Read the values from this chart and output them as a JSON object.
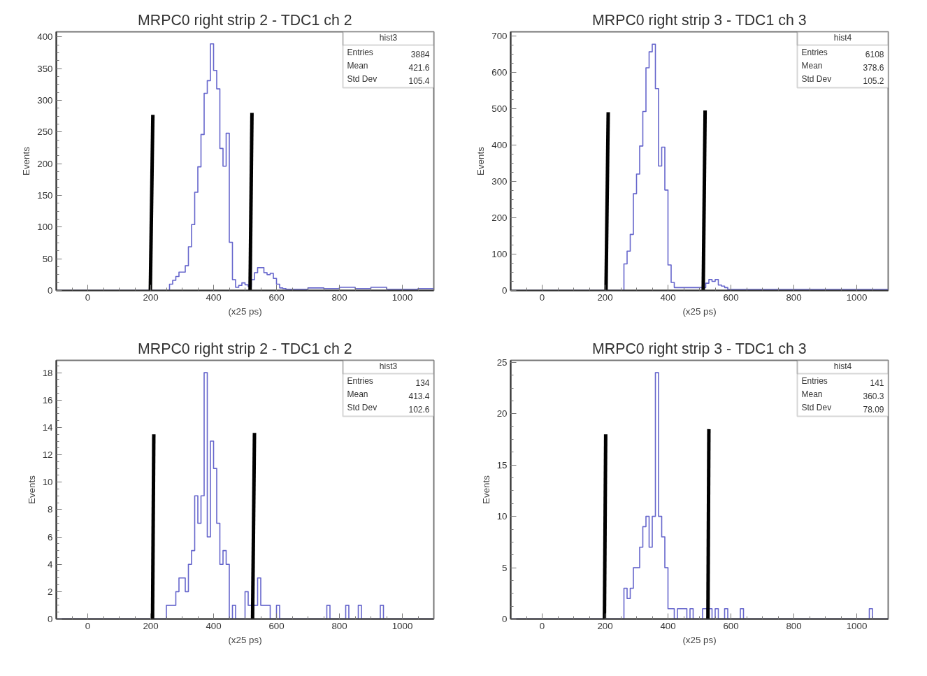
{
  "chart_data": [
    {
      "type": "histogram",
      "title": "MRPC0 right strip 2 - TDC1 ch 2",
      "xlabel": "(x25 ps)",
      "ylabel": "Events",
      "color": "#6666cc",
      "bins": [
        -100,
        260,
        270,
        280,
        290,
        300,
        310,
        320,
        330,
        340,
        350,
        360,
        370,
        380,
        390,
        400,
        410,
        420,
        430,
        440,
        450,
        460,
        470,
        480,
        490,
        500,
        510,
        520,
        530,
        540,
        550,
        560,
        570,
        580,
        590,
        600,
        610,
        620,
        630,
        700,
        750,
        800,
        850,
        900,
        950,
        1050,
        1100
      ],
      "values": [
        0,
        10,
        16,
        22,
        29,
        29,
        39,
        69,
        104,
        155,
        195,
        246,
        311,
        331,
        389,
        347,
        318,
        224,
        196,
        248,
        76,
        17,
        5,
        8,
        12,
        9,
        6,
        17,
        28,
        36,
        36,
        28,
        25,
        27,
        19,
        10,
        4,
        3,
        2,
        4,
        3,
        5,
        3,
        5,
        2,
        3
      ],
      "series": [
        {
          "type": "line",
          "color": "#000000",
          "x": [
            199,
            207
          ],
          "values": [
            0,
            277
          ]
        },
        {
          "type": "line",
          "color": "#000000",
          "x": [
            516,
            522
          ],
          "values": [
            0,
            280
          ]
        }
      ],
      "xlim": [
        -100,
        1100
      ],
      "xticks": [
        0,
        200,
        400,
        600,
        800,
        1000
      ],
      "ylim": [
        0,
        408
      ],
      "yticks": [
        0,
        50,
        100,
        150,
        200,
        250,
        300,
        350,
        400
      ],
      "annotations": [
        "hist3",
        "Entries",
        "3884",
        "Mean",
        "421.6",
        "Std Dev",
        "105.4"
      ],
      "grid": false
    },
    {
      "type": "histogram",
      "title": "MRPC0 right strip 3 - TDC1 ch 3",
      "xlabel": "(x25 ps)",
      "ylabel": "Events",
      "color": "#6666cc",
      "bins": [
        -100,
        260,
        270,
        280,
        290,
        300,
        310,
        320,
        330,
        340,
        350,
        360,
        370,
        380,
        390,
        400,
        410,
        420,
        520,
        530,
        540,
        550,
        560,
        570,
        580,
        590,
        1100
      ],
      "values": [
        0,
        73,
        108,
        154,
        266,
        320,
        397,
        492,
        612,
        656,
        677,
        555,
        342,
        394,
        276,
        70,
        22,
        8,
        20,
        30,
        25,
        30,
        15,
        12,
        8,
        3
      ],
      "series": [
        {
          "type": "line",
          "color": "#000000",
          "x": [
            203,
            210
          ],
          "values": [
            0,
            490
          ]
        },
        {
          "type": "line",
          "color": "#000000",
          "x": [
            512,
            518
          ],
          "values": [
            0,
            495
          ]
        }
      ],
      "xlim": [
        -100,
        1100
      ],
      "xticks": [
        0,
        200,
        400,
        600,
        800,
        1000
      ],
      "ylim": [
        0,
        711
      ],
      "yticks": [
        0,
        100,
        200,
        300,
        400,
        500,
        600,
        700
      ],
      "annotations": [
        "hist4",
        "Entries",
        "6108",
        "Mean",
        "378.6",
        "Std Dev",
        "105.2"
      ],
      "grid": false
    },
    {
      "type": "histogram",
      "title": "MRPC0 right strip 2 - TDC1 ch 2",
      "xlabel": "(x25 ps)",
      "ylabel": "Events",
      "color": "#6666cc",
      "bins": [
        -100,
        250,
        260,
        270,
        280,
        290,
        300,
        310,
        320,
        330,
        340,
        350,
        360,
        370,
        380,
        390,
        400,
        410,
        420,
        430,
        440,
        450,
        460,
        470,
        480,
        490,
        500,
        510,
        520,
        530,
        540,
        550,
        560,
        570,
        580,
        590,
        600,
        610,
        620,
        760,
        770,
        820,
        830,
        860,
        870,
        930,
        940,
        1100
      ],
      "values": [
        0,
        1,
        1,
        1,
        2,
        3,
        3,
        2,
        4,
        5,
        9,
        7,
        9,
        18,
        6,
        13,
        11,
        7,
        4,
        5,
        4,
        0,
        1,
        0,
        0,
        0,
        2,
        1,
        1,
        1,
        3,
        1,
        1,
        1,
        0,
        0,
        1,
        0,
        0,
        1,
        0,
        1,
        0,
        1,
        0,
        1,
        0
      ],
      "series": [
        {
          "type": "line",
          "color": "#000000",
          "x": [
            206,
            210
          ],
          "values": [
            0,
            13.5
          ]
        },
        {
          "type": "line",
          "color": "#000000",
          "x": [
            524,
            530
          ],
          "values": [
            0,
            13.6
          ]
        }
      ],
      "xlim": [
        -100,
        1100
      ],
      "xticks": [
        0,
        200,
        400,
        600,
        800,
        1000
      ],
      "ylim": [
        0,
        18.9
      ],
      "yticks": [
        0,
        2,
        4,
        6,
        8,
        10,
        12,
        14,
        16,
        18
      ],
      "annotations": [
        "hist3",
        "Entries",
        "134",
        "Mean",
        "413.4",
        "Std Dev",
        "102.6"
      ],
      "grid": false
    },
    {
      "type": "histogram",
      "title": "MRPC0 right strip 3 - TDC1 ch 3",
      "xlabel": "(x25 ps)",
      "ylabel": "Events",
      "color": "#6666cc",
      "bins": [
        -100,
        260,
        270,
        280,
        290,
        300,
        310,
        320,
        330,
        340,
        350,
        360,
        370,
        380,
        390,
        400,
        410,
        420,
        430,
        440,
        450,
        460,
        470,
        480,
        510,
        540,
        550,
        560,
        580,
        590,
        630,
        640,
        1040,
        1050,
        1100
      ],
      "values": [
        0,
        3,
        2,
        3,
        5,
        5,
        7,
        9,
        10,
        7,
        10,
        24,
        10,
        8,
        5,
        1,
        1,
        0,
        1,
        1,
        1,
        0,
        1,
        0,
        1,
        0,
        1,
        0,
        1,
        0,
        1,
        0,
        1,
        0
      ],
      "series": [
        {
          "type": "line",
          "color": "#000000",
          "x": [
            198,
            202
          ],
          "values": [
            0,
            18
          ]
        },
        {
          "type": "line",
          "color": "#000000",
          "x": [
            527,
            530
          ],
          "values": [
            0,
            18.5
          ]
        }
      ],
      "xlim": [
        -100,
        1100
      ],
      "xticks": [
        0,
        200,
        400,
        600,
        800,
        1000
      ],
      "ylim": [
        0,
        25.2
      ],
      "yticks": [
        0,
        5,
        10,
        15,
        20,
        25
      ],
      "annotations": [
        "hist4",
        "Entries",
        "141",
        "Mean",
        "360.3",
        "Std Dev",
        "78.09"
      ],
      "grid": false
    }
  ]
}
